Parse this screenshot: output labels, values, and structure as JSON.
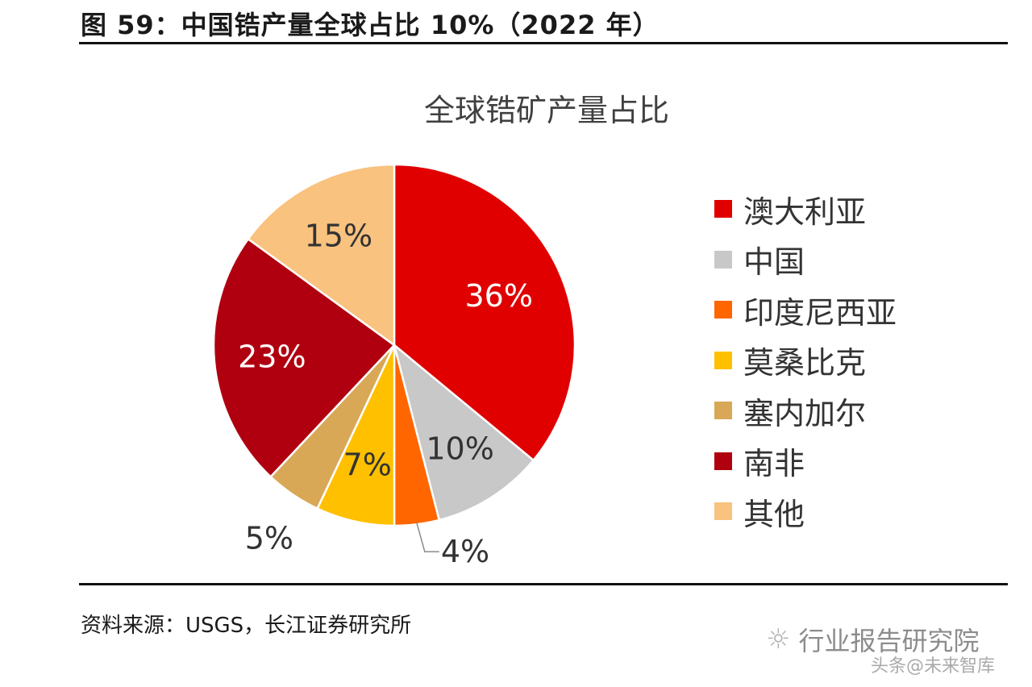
{
  "figure": {
    "title": "图  59：中国锆产量全球占比 10%（2022 年）",
    "source": "资料来源：USGS，长江证券研究所"
  },
  "watermark": {
    "text": "行业报告研究院",
    "sub": "头条@未来智库",
    "icon": "wechat-icon"
  },
  "chart_data": {
    "type": "pie",
    "title": "全球锆矿产量占比",
    "legend_position": "right",
    "categories": [
      "澳大利亚",
      "中国",
      "印度尼西亚",
      "莫桑比克",
      "塞内加尔",
      "南非",
      "其他"
    ],
    "values": [
      36,
      10,
      4,
      7,
      5,
      23,
      15
    ],
    "labels": [
      "36%",
      "10%",
      "4%",
      "7%",
      "5%",
      "23%",
      "15%"
    ],
    "colors": [
      "#E00000",
      "#C8C8C8",
      "#FF6600",
      "#FFC000",
      "#D8A857",
      "#B00010",
      "#F9C27F"
    ],
    "label_colors": [
      "#ffffff",
      "#333333",
      "#333333",
      "#333333",
      "#333333",
      "#ffffff",
      "#333333"
    ]
  }
}
